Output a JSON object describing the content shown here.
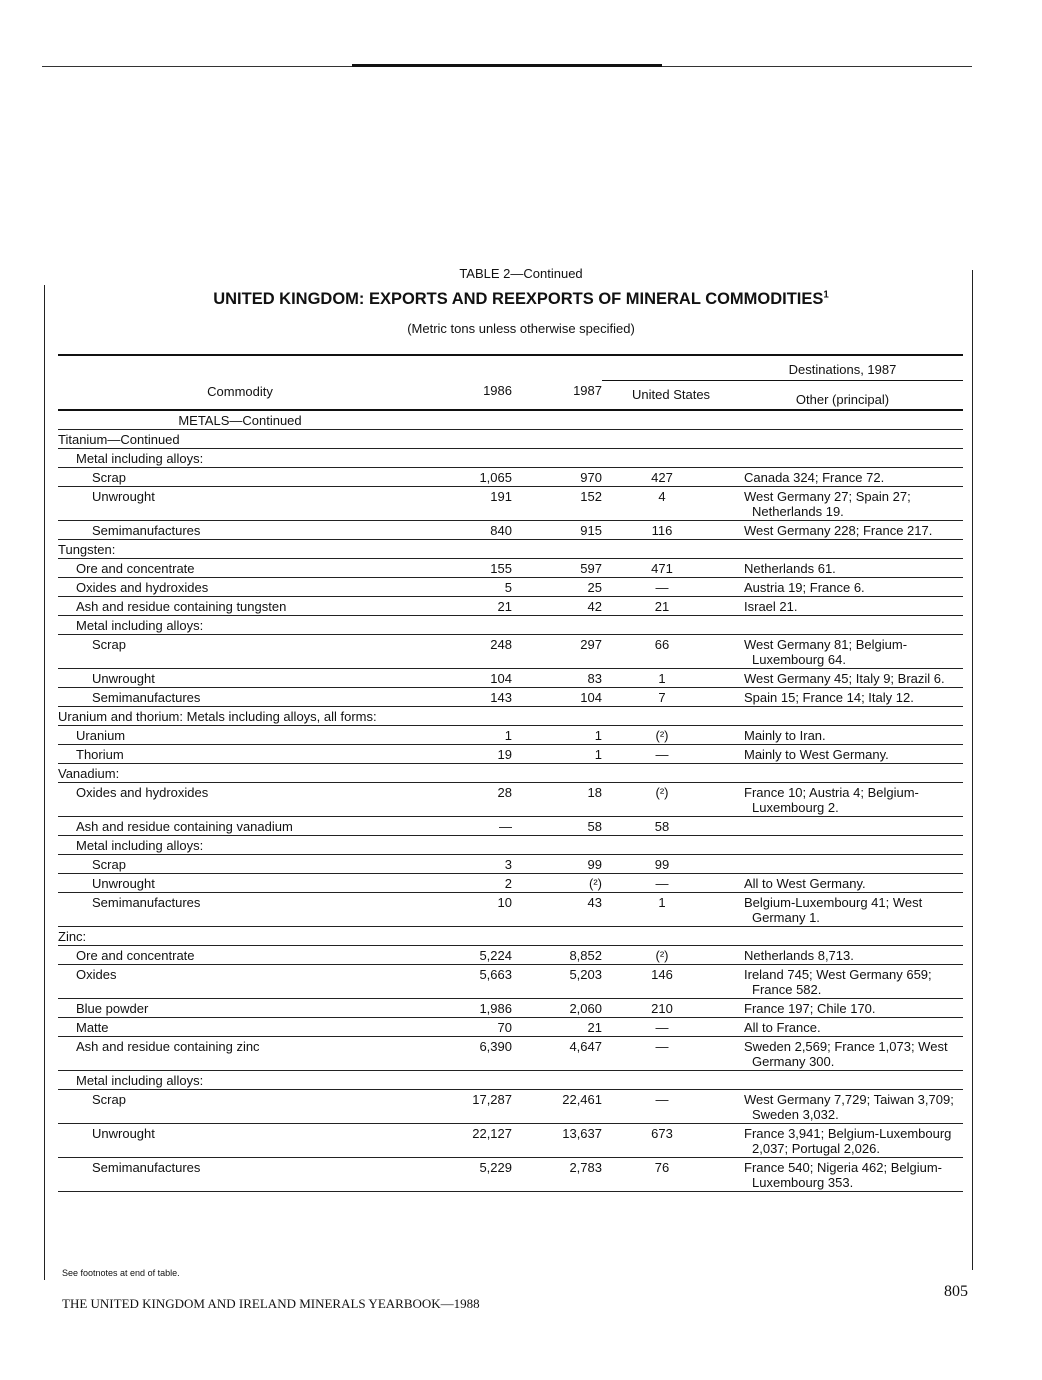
{
  "table_label": "TABLE 2—Continued",
  "title": "UNITED KINGDOM: EXPORTS AND REEXPORTS OF MINERAL COMMODITIES",
  "title_footnote": "1",
  "subtitle": "(Metric tons unless otherwise specified)",
  "headers": {
    "commodity": "Commodity",
    "y1986": "1986",
    "y1987": "1987",
    "destinations": "Destinations, 1987",
    "us": "United States",
    "other": "Other (principal)"
  },
  "rows": [
    {
      "type": "section",
      "label": "METALS—Continued"
    },
    {
      "label": "Titanium—Continued",
      "indent": 0
    },
    {
      "label": "Metal including alloys:",
      "indent": 1
    },
    {
      "label": "Scrap",
      "indent": 2,
      "v1986": "1,065",
      "v1987": "970",
      "us": "427",
      "other": "Canada 324; France 72."
    },
    {
      "label": "Unwrought",
      "indent": 2,
      "v1986": "191",
      "v1987": "152",
      "us": "4",
      "other": "West Germany 27; Spain 27; Netherlands 19."
    },
    {
      "label": "Semimanufactures",
      "indent": 2,
      "v1986": "840",
      "v1987": "915",
      "us": "116",
      "other": "West Germany 228; France 217."
    },
    {
      "label": "Tungsten:",
      "indent": 0
    },
    {
      "label": "Ore and concentrate",
      "indent": 1,
      "v1986": "155",
      "v1987": "597",
      "us": "471",
      "other": "Netherlands 61."
    },
    {
      "label": "Oxides and hydroxides",
      "indent": 1,
      "v1986": "5",
      "v1987": "25",
      "us": "—",
      "other": "Austria 19; France 6."
    },
    {
      "label": "Ash and residue containing tungsten",
      "indent": 1,
      "v1986": "21",
      "v1987": "42",
      "us": "21",
      "other": "Israel 21."
    },
    {
      "label": "Metal including alloys:",
      "indent": 1
    },
    {
      "label": "Scrap",
      "indent": 2,
      "v1986": "248",
      "v1987": "297",
      "us": "66",
      "other": "West Germany 81; Belgium-Luxembourg 64."
    },
    {
      "label": "Unwrought",
      "indent": 2,
      "v1986": "104",
      "v1987": "83",
      "us": "1",
      "other": "West Germany 45; Italy 9; Brazil 6."
    },
    {
      "label": "Semimanufactures",
      "indent": 2,
      "v1986": "143",
      "v1987": "104",
      "us": "7",
      "other": "Spain 15; France 14; Italy 12."
    },
    {
      "label": "Uranium and thorium: Metals including alloys, all forms:",
      "indent": 0
    },
    {
      "label": "Uranium",
      "indent": 1,
      "v1986": "1",
      "v1987": "1",
      "us": "(²)",
      "other": "Mainly to Iran."
    },
    {
      "label": "Thorium",
      "indent": 1,
      "v1986": "19",
      "v1987": "1",
      "us": "—",
      "other": "Mainly to West Germany."
    },
    {
      "label": "Vanadium:",
      "indent": 0
    },
    {
      "label": "Oxides and hydroxides",
      "indent": 1,
      "v1986": "28",
      "v1987": "18",
      "us": "(²)",
      "other": "France 10; Austria 4; Belgium-Luxembourg 2."
    },
    {
      "label": "Ash and residue containing vanadium",
      "indent": 1,
      "v1986": "—",
      "v1987": "58",
      "us": "58",
      "other": ""
    },
    {
      "label": "Metal including alloys:",
      "indent": 1
    },
    {
      "label": "Scrap",
      "indent": 2,
      "v1986": "3",
      "v1987": "99",
      "us": "99",
      "other": ""
    },
    {
      "label": "Unwrought",
      "indent": 2,
      "v1986": "2",
      "v1987": "(²)",
      "us": "—",
      "other": "All to West Germany."
    },
    {
      "label": "Semimanufactures",
      "indent": 2,
      "v1986": "10",
      "v1987": "43",
      "us": "1",
      "other": "Belgium-Luxembourg 41; West Germany 1."
    },
    {
      "label": "Zinc:",
      "indent": 0
    },
    {
      "label": "Ore and concentrate",
      "indent": 1,
      "v1986": "5,224",
      "v1987": "8,852",
      "us": "(²)",
      "other": "Netherlands 8,713."
    },
    {
      "label": "Oxides",
      "indent": 1,
      "v1986": "5,663",
      "v1987": "5,203",
      "us": "146",
      "other": "Ireland 745; West Germany 659; France 582."
    },
    {
      "label": "Blue powder",
      "indent": 1,
      "v1986": "1,986",
      "v1987": "2,060",
      "us": "210",
      "other": "France 197; Chile 170."
    },
    {
      "label": "Matte",
      "indent": 1,
      "v1986": "70",
      "v1987": "21",
      "us": "—",
      "other": "All to France."
    },
    {
      "label": "Ash and residue containing zinc",
      "indent": 1,
      "v1986": "6,390",
      "v1987": "4,647",
      "us": "—",
      "other": "Sweden 2,569; France 1,073; West Germany 300."
    },
    {
      "label": "Metal including alloys:",
      "indent": 1
    },
    {
      "label": "Scrap",
      "indent": 2,
      "v1986": "17,287",
      "v1987": "22,461",
      "us": "—",
      "other": "West Germany 7,729; Taiwan 3,709; Sweden 3,032."
    },
    {
      "label": "Unwrought",
      "indent": 2,
      "v1986": "22,127",
      "v1987": "13,637",
      "us": "673",
      "other": "France 3,941; Belgium-Luxembourg 2,037; Portugal 2,026."
    },
    {
      "label": "Semimanufactures",
      "indent": 2,
      "v1986": "5,229",
      "v1987": "2,783",
      "us": "76",
      "other": "France 540; Nigeria 462; Belgium-Luxembourg 353."
    }
  ],
  "footnote": "See footnotes at end of table.",
  "footer": {
    "book": "THE UNITED KINGDOM AND IRELAND MINERALS YEARBOOK—1988",
    "page": "805"
  }
}
